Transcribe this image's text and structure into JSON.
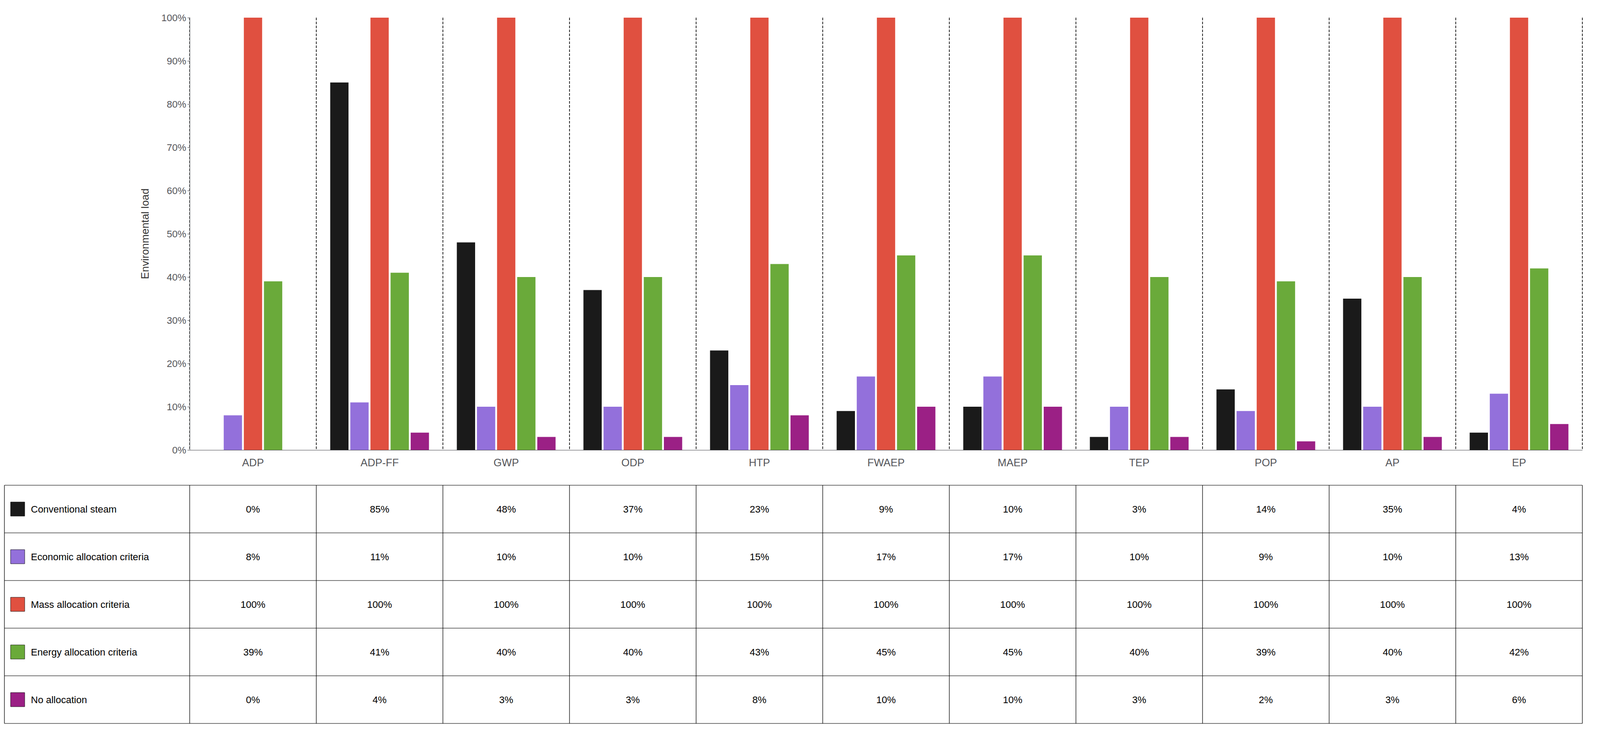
{
  "chart_data": {
    "type": "bar",
    "categories": [
      "ADP",
      "ADP-FF",
      "GWP",
      "ODP",
      "HTP",
      "FWAEP",
      "MAEP",
      "TEP",
      "POP",
      "AP",
      "EP"
    ],
    "ylabel": "Environmental load",
    "ylim": [
      0,
      100
    ],
    "yticks": [
      {
        "value": 0,
        "label": "0%"
      },
      {
        "value": 10,
        "label": "10%"
      },
      {
        "value": 20,
        "label": "20%"
      },
      {
        "value": 30,
        "label": "30%"
      },
      {
        "value": 40,
        "label": "40%"
      },
      {
        "value": 50,
        "label": "50%"
      },
      {
        "value": 60,
        "label": "60%"
      },
      {
        "value": 70,
        "label": "70%"
      },
      {
        "value": 80,
        "label": "80%"
      },
      {
        "value": 90,
        "label": "90%"
      },
      {
        "value": 100,
        "label": "100%"
      }
    ],
    "grid": false,
    "series": [
      {
        "name": "Conventional steam",
        "color": "#1a1a1a",
        "values": [
          0,
          85,
          48,
          37,
          23,
          9,
          10,
          3,
          14,
          35,
          4
        ],
        "value_labels": [
          "0%",
          "85%",
          "48%",
          "37%",
          "23%",
          "9%",
          "10%",
          "3%",
          "14%",
          "35%",
          "4%"
        ]
      },
      {
        "name": "Economic allocation criteria",
        "color": "#9370DB",
        "values": [
          8,
          11,
          10,
          10,
          15,
          17,
          17,
          10,
          9,
          10,
          13
        ],
        "value_labels": [
          "8%",
          "11%",
          "10%",
          "10%",
          "15%",
          "17%",
          "17%",
          "10%",
          "9%",
          "10%",
          "13%"
        ]
      },
      {
        "name": "Mass allocation criteria",
        "color": "#E05040",
        "values": [
          100,
          100,
          100,
          100,
          100,
          100,
          100,
          100,
          100,
          100,
          100
        ],
        "value_labels": [
          "100%",
          "100%",
          "100%",
          "100%",
          "100%",
          "100%",
          "100%",
          "100%",
          "100%",
          "100%",
          "100%"
        ]
      },
      {
        "name": "Energy allocation criteria",
        "color": "#6aaa3a",
        "values": [
          39,
          41,
          40,
          40,
          43,
          45,
          45,
          40,
          39,
          40,
          42
        ],
        "value_labels": [
          "39%",
          "41%",
          "40%",
          "40%",
          "43%",
          "45%",
          "45%",
          "40%",
          "39%",
          "40%",
          "42%"
        ]
      },
      {
        "name": "No allocation",
        "color": "#9B2085",
        "values": [
          0,
          4,
          3,
          3,
          8,
          10,
          10,
          3,
          2,
          3,
          6
        ],
        "value_labels": [
          "0%",
          "4%",
          "3%",
          "3%",
          "8%",
          "10%",
          "10%",
          "3%",
          "2%",
          "3%",
          "6%"
        ]
      }
    ]
  }
}
